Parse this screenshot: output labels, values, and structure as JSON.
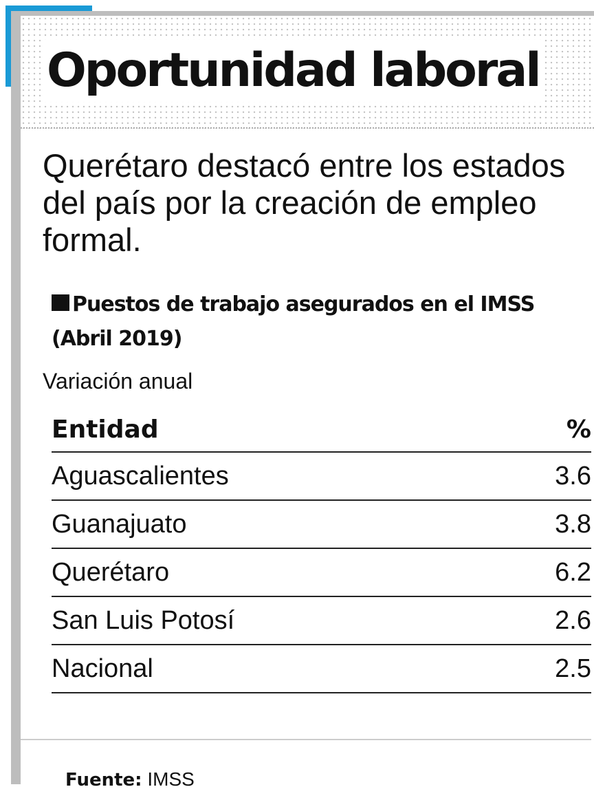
{
  "header": {
    "title": "Oportunidad laboral",
    "subtitle": "Querétaro destacó entre los estados del país por la creación de empleo formal."
  },
  "section": {
    "title": "Puestos de trabajo asegurados en el IMSS (Abril 2019)",
    "note": "Variación anual"
  },
  "table": {
    "columns": [
      "Entidad",
      "%"
    ],
    "rows": [
      [
        "Aguascalientes",
        3.6
      ],
      [
        "Guanajuato",
        3.8
      ],
      [
        "Querétaro",
        6.2
      ],
      [
        "San Luis Potosí",
        2.6
      ],
      [
        "Nacional",
        2.5
      ]
    ]
  },
  "footer": {
    "label": "Fuente:",
    "source": "IMSS"
  }
}
